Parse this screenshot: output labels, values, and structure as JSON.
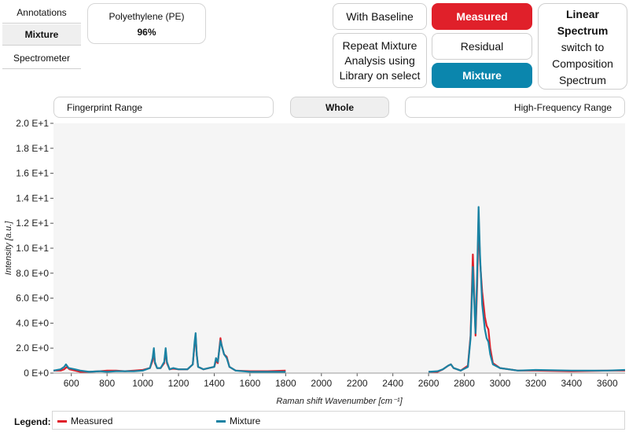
{
  "tabs": [
    "Annotations",
    "Mixture",
    "Spectrometer"
  ],
  "result": {
    "name": "Polyethylene (PE)",
    "percent": "96%"
  },
  "buttons": {
    "baseline": "With Baseline",
    "measured": "Measured",
    "repeat": "Repeat Mixture Analysis using Library on select",
    "residual": "Residual",
    "mixture": "Mixture"
  },
  "spectrum_toggle": {
    "title": "Linear Spectrum",
    "action": "switch to Composition Spectrum"
  },
  "ranges": {
    "fingerprint": "Fingerprint Range",
    "whole": "Whole",
    "high": "High-Frequency Range"
  },
  "legend": {
    "label": "Legend:"
  },
  "colors": {
    "measured": "#e0202a",
    "mixture": "#1a82a3",
    "plot_bg": "#f5f5f5"
  },
  "chart_data": {
    "type": "line",
    "xlabel": "Raman shift Wavenumber [cm⁻¹]",
    "ylabel": "Intensity [a.u.]",
    "xlim": [
      500,
      3700
    ],
    "ylim": [
      0,
      20
    ],
    "xticks": [
      600,
      800,
      1000,
      1200,
      1400,
      1600,
      1800,
      2000,
      2200,
      2400,
      2600,
      2800,
      3000,
      3200,
      3400,
      3600
    ],
    "yticks": [
      {
        "v": 0,
        "label": "0 E+0"
      },
      {
        "v": 2,
        "label": "2.0 E+0"
      },
      {
        "v": 4,
        "label": "4.0 E+0"
      },
      {
        "v": 6,
        "label": "6.0 E+0"
      },
      {
        "v": 8,
        "label": "8.0 E+0"
      },
      {
        "v": 10,
        "label": "1.0 E+1"
      },
      {
        "v": 12,
        "label": "1.2 E+1"
      },
      {
        "v": 14,
        "label": "1.4 E+1"
      },
      {
        "v": 16,
        "label": "1.6 E+1"
      },
      {
        "v": 18,
        "label": "1.8 E+1"
      },
      {
        "v": 20,
        "label": "2.0 E+1"
      }
    ],
    "series": [
      {
        "name": "Measured",
        "segments": [
          [
            [
              500,
              0.2
            ],
            [
              540,
              0.2
            ],
            [
              560,
              0.3
            ],
            [
              575,
              0.5
            ],
            [
              590,
              0.3
            ],
            [
              620,
              0.2
            ],
            [
              650,
              0.1
            ],
            [
              700,
              0.1
            ],
            [
              760,
              0.15
            ],
            [
              800,
              0.2
            ],
            [
              850,
              0.2
            ],
            [
              900,
              0.15
            ],
            [
              950,
              0.2
            ],
            [
              1000,
              0.25
            ],
            [
              1040,
              0.4
            ],
            [
              1055,
              1.0
            ],
            [
              1062,
              1.8
            ],
            [
              1068,
              0.8
            ],
            [
              1080,
              0.4
            ],
            [
              1100,
              0.4
            ],
            [
              1120,
              0.8
            ],
            [
              1128,
              1.8
            ],
            [
              1135,
              0.8
            ],
            [
              1150,
              0.3
            ],
            [
              1170,
              0.35
            ],
            [
              1200,
              0.3
            ],
            [
              1250,
              0.3
            ],
            [
              1280,
              0.7
            ],
            [
              1290,
              2.3
            ],
            [
              1296,
              3.0
            ],
            [
              1302,
              1.5
            ],
            [
              1310,
              0.5
            ],
            [
              1340,
              0.3
            ],
            [
              1370,
              0.4
            ],
            [
              1400,
              0.5
            ],
            [
              1410,
              1.0
            ],
            [
              1420,
              0.8
            ],
            [
              1435,
              2.8
            ],
            [
              1442,
              2.2
            ],
            [
              1455,
              1.5
            ],
            [
              1470,
              1.3
            ],
            [
              1485,
              0.5
            ],
            [
              1520,
              0.2
            ],
            [
              1600,
              0.15
            ],
            [
              1700,
              0.15
            ],
            [
              1800,
              0.2
            ]
          ],
          [
            [
              2600,
              0.1
            ],
            [
              2650,
              0.1
            ],
            [
              2680,
              0.3
            ],
            [
              2710,
              0.6
            ],
            [
              2725,
              0.7
            ],
            [
              2740,
              0.4
            ],
            [
              2780,
              0.2
            ],
            [
              2820,
              0.6
            ],
            [
              2835,
              3.0
            ],
            [
              2848,
              9.5
            ],
            [
              2856,
              6.0
            ],
            [
              2863,
              3.0
            ],
            [
              2872,
              7.0
            ],
            [
              2880,
              12.5
            ],
            [
              2888,
              9.0
            ],
            [
              2900,
              6.5
            ],
            [
              2915,
              4.5
            ],
            [
              2925,
              3.8
            ],
            [
              2935,
              3.5
            ],
            [
              2945,
              2.0
            ],
            [
              2960,
              0.8
            ],
            [
              3000,
              0.4
            ],
            [
              3050,
              0.3
            ],
            [
              3100,
              0.2
            ],
            [
              3200,
              0.2
            ],
            [
              3400,
              0.15
            ],
            [
              3600,
              0.2
            ],
            [
              3700,
              0.2
            ]
          ]
        ]
      },
      {
        "name": "Mixture",
        "segments": [
          [
            [
              500,
              0.2
            ],
            [
              540,
              0.3
            ],
            [
              560,
              0.5
            ],
            [
              570,
              0.7
            ],
            [
              585,
              0.4
            ],
            [
              620,
              0.3
            ],
            [
              650,
              0.2
            ],
            [
              700,
              0.1
            ],
            [
              760,
              0.15
            ],
            [
              800,
              0.1
            ],
            [
              850,
              0.15
            ],
            [
              900,
              0.15
            ],
            [
              950,
              0.15
            ],
            [
              1000,
              0.2
            ],
            [
              1040,
              0.4
            ],
            [
              1055,
              1.2
            ],
            [
              1062,
              2.0
            ],
            [
              1068,
              0.9
            ],
            [
              1080,
              0.4
            ],
            [
              1100,
              0.4
            ],
            [
              1120,
              0.9
            ],
            [
              1128,
              2.0
            ],
            [
              1135,
              0.9
            ],
            [
              1150,
              0.3
            ],
            [
              1170,
              0.4
            ],
            [
              1200,
              0.3
            ],
            [
              1250,
              0.3
            ],
            [
              1280,
              0.7
            ],
            [
              1290,
              2.5
            ],
            [
              1296,
              3.2
            ],
            [
              1302,
              1.5
            ],
            [
              1310,
              0.5
            ],
            [
              1340,
              0.3
            ],
            [
              1370,
              0.4
            ],
            [
              1400,
              0.5
            ],
            [
              1410,
              1.2
            ],
            [
              1420,
              0.9
            ],
            [
              1435,
              2.6
            ],
            [
              1442,
              2.2
            ],
            [
              1455,
              1.5
            ],
            [
              1470,
              1.2
            ],
            [
              1485,
              0.5
            ],
            [
              1520,
              0.2
            ],
            [
              1600,
              0.1
            ],
            [
              1700,
              0.1
            ],
            [
              1800,
              0.1
            ]
          ],
          [
            [
              2600,
              0.1
            ],
            [
              2650,
              0.15
            ],
            [
              2680,
              0.3
            ],
            [
              2710,
              0.6
            ],
            [
              2725,
              0.7
            ],
            [
              2740,
              0.4
            ],
            [
              2780,
              0.2
            ],
            [
              2820,
              0.5
            ],
            [
              2835,
              2.8
            ],
            [
              2848,
              8.5
            ],
            [
              2856,
              5.5
            ],
            [
              2863,
              3.2
            ],
            [
              2872,
              8.0
            ],
            [
              2880,
              13.3
            ],
            [
              2888,
              9.5
            ],
            [
              2900,
              5.5
            ],
            [
              2915,
              3.5
            ],
            [
              2925,
              2.8
            ],
            [
              2935,
              2.5
            ],
            [
              2945,
              1.5
            ],
            [
              2960,
              0.7
            ],
            [
              3000,
              0.4
            ],
            [
              3050,
              0.3
            ],
            [
              3100,
              0.2
            ],
            [
              3200,
              0.25
            ],
            [
              3400,
              0.2
            ],
            [
              3600,
              0.2
            ],
            [
              3700,
              0.25
            ]
          ]
        ]
      }
    ]
  }
}
